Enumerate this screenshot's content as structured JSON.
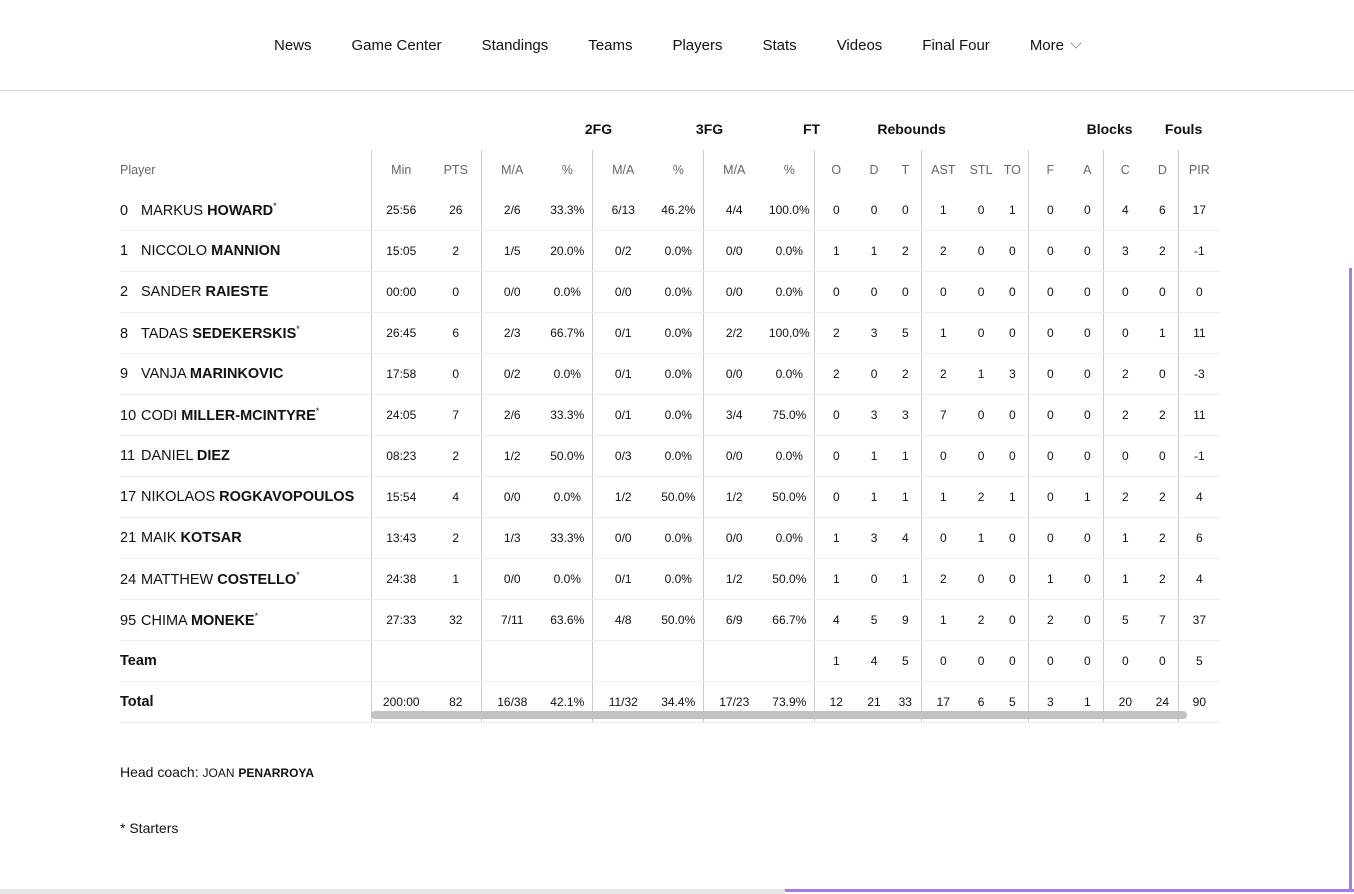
{
  "nav": [
    "News",
    "Game Center",
    "Standings",
    "Teams",
    "Players",
    "Stats",
    "Videos",
    "Final Four",
    "More"
  ],
  "table": {
    "groups": [
      "2FG",
      "3FG",
      "FT",
      "Rebounds",
      "Blocks",
      "Fouls"
    ],
    "columns": [
      "Player",
      "Min",
      "PTS",
      "M/A",
      "%",
      "M/A",
      "%",
      "M/A",
      "%",
      "O",
      "D",
      "T",
      "AST",
      "STL",
      "TO",
      "F",
      "A",
      "C",
      "D",
      "PIR"
    ],
    "rows": [
      {
        "number": "0",
        "first": "MARKUS",
        "last": "HOWARD",
        "mark": "*",
        "stats": [
          "25:56",
          "26",
          "2/6",
          "33.3%",
          "6/13",
          "46.2%",
          "4/4",
          "100.0%",
          "0",
          "0",
          "0",
          "1",
          "0",
          "1",
          "0",
          "0",
          "4",
          "6",
          "17"
        ]
      },
      {
        "number": "1",
        "first": "NICCOLO",
        "last": "MANNION",
        "stats": [
          "15:05",
          "2",
          "1/5",
          "20.0%",
          "0/2",
          "0.0%",
          "0/0",
          "0.0%",
          "1",
          "1",
          "2",
          "2",
          "0",
          "0",
          "0",
          "0",
          "3",
          "2",
          "-1"
        ]
      },
      {
        "number": "2",
        "first": "SANDER",
        "last": "RAIESTE",
        "stats": [
          "00:00",
          "0",
          "0/0",
          "0.0%",
          "0/0",
          "0.0%",
          "0/0",
          "0.0%",
          "0",
          "0",
          "0",
          "0",
          "0",
          "0",
          "0",
          "0",
          "0",
          "0",
          "0"
        ]
      },
      {
        "number": "8",
        "first": "TADAS",
        "last": "SEDEKERSKIS",
        "mark": "*",
        "stats": [
          "26:45",
          "6",
          "2/3",
          "66.7%",
          "0/1",
          "0.0%",
          "2/2",
          "100.0%",
          "2",
          "3",
          "5",
          "1",
          "0",
          "0",
          "0",
          "0",
          "0",
          "1",
          "11"
        ]
      },
      {
        "number": "9",
        "first": "VANJA",
        "last": "MARINKOVIC",
        "stats": [
          "17:58",
          "0",
          "0/2",
          "0.0%",
          "0/1",
          "0.0%",
          "0/0",
          "0.0%",
          "2",
          "0",
          "2",
          "2",
          "1",
          "3",
          "0",
          "0",
          "2",
          "0",
          "-3"
        ]
      },
      {
        "number": "10",
        "first": "CODI",
        "last": "MILLER-MCINTYRE",
        "mark": "*",
        "stats": [
          "24:05",
          "7",
          "2/6",
          "33.3%",
          "0/1",
          "0.0%",
          "3/4",
          "75.0%",
          "0",
          "3",
          "3",
          "7",
          "0",
          "0",
          "0",
          "0",
          "2",
          "2",
          "11"
        ]
      },
      {
        "number": "11",
        "first": "DANIEL",
        "last": "DIEZ",
        "stats": [
          "08:23",
          "2",
          "1/2",
          "50.0%",
          "0/3",
          "0.0%",
          "0/0",
          "0.0%",
          "0",
          "1",
          "1",
          "0",
          "0",
          "0",
          "0",
          "0",
          "0",
          "0",
          "-1"
        ]
      },
      {
        "number": "17",
        "first": "NIKOLAOS",
        "last": "ROGKAVOPOULOS",
        "stats": [
          "15:54",
          "4",
          "0/0",
          "0.0%",
          "1/2",
          "50.0%",
          "1/2",
          "50.0%",
          "0",
          "1",
          "1",
          "1",
          "2",
          "1",
          "0",
          "1",
          "2",
          "2",
          "4"
        ]
      },
      {
        "number": "21",
        "first": "MAIK",
        "last": "KOTSAR",
        "stats": [
          "13:43",
          "2",
          "1/3",
          "33.3%",
          "0/0",
          "0.0%",
          "0/0",
          "0.0%",
          "1",
          "3",
          "4",
          "0",
          "1",
          "0",
          "0",
          "0",
          "1",
          "2",
          "6"
        ]
      },
      {
        "number": "24",
        "first": "MATTHEW",
        "last": "COSTELLO",
        "mark": "*",
        "stats": [
          "24:38",
          "1",
          "0/0",
          "0.0%",
          "0/1",
          "0.0%",
          "1/2",
          "50.0%",
          "1",
          "0",
          "1",
          "2",
          "0",
          "0",
          "1",
          "0",
          "1",
          "2",
          "4"
        ]
      },
      {
        "number": "95",
        "first": "CHIMA",
        "last": "MONEKE",
        "mark": "*",
        "stats": [
          "27:33",
          "32",
          "7/11",
          "63.6%",
          "4/8",
          "50.0%",
          "6/9",
          "66.7%",
          "4",
          "5",
          "9",
          "1",
          "2",
          "0",
          "2",
          "0",
          "5",
          "7",
          "37"
        ]
      }
    ],
    "team": {
      "name": "Team",
      "stats": [
        "1",
        "4",
        "5",
        "0",
        "0",
        "0",
        "0",
        "0",
        "0",
        "0",
        "5"
      ]
    },
    "total": {
      "name": "Total",
      "stats": [
        "200:00",
        "82",
        "16/38",
        "42.1%",
        "11/32",
        "34.4%",
        "17/23",
        "73.9%",
        "12",
        "21",
        "33",
        "17",
        "6",
        "5",
        "3",
        "1",
        "20",
        "24",
        "90"
      ]
    }
  },
  "coach": {
    "label": "Head coach:",
    "first": "JOAN",
    "last": "PENARROYA"
  },
  "footnote": "* Starters"
}
